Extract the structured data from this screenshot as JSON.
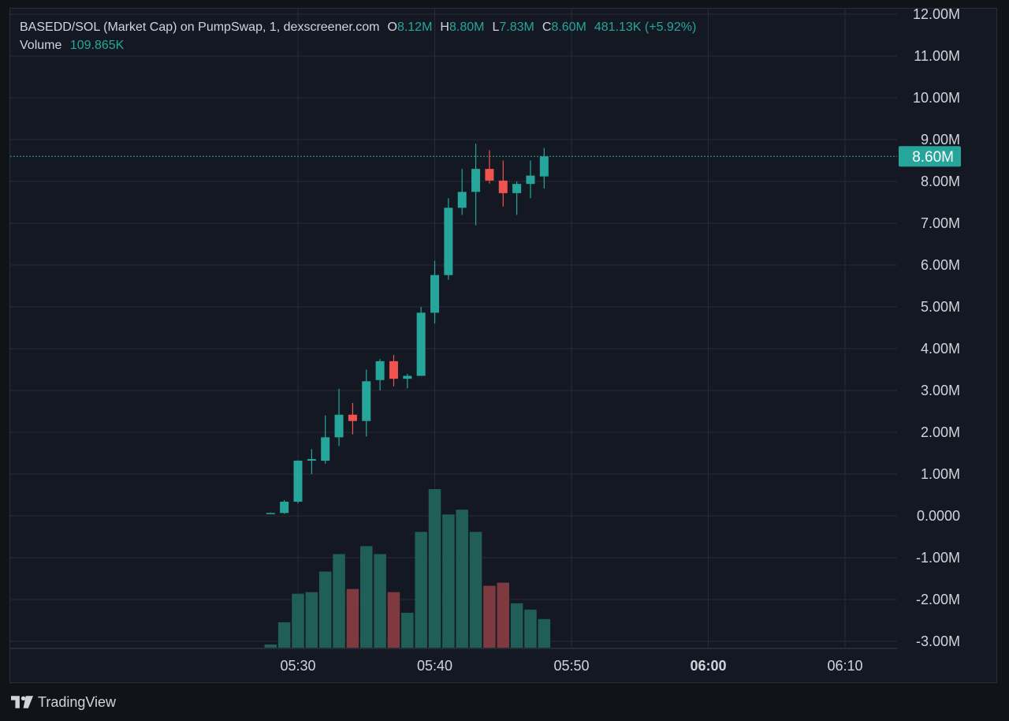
{
  "legend": {
    "symbol": "BASEDD/SOL (Market Cap) on PumpSwap, 1, dexscreener.com",
    "o_label": "O",
    "o_value": "8.12M",
    "h_label": "H",
    "h_value": "8.80M",
    "l_label": "L",
    "l_value": "7.83M",
    "c_label": "C",
    "c_value": "8.60M",
    "change": "481.13K (+5.92%)",
    "volume_label": "Volume",
    "volume_value": "109.865K"
  },
  "branding": {
    "name": "TradingView"
  },
  "colors": {
    "up": "#26a69a",
    "down": "#ef5350",
    "up_volume": "#1f5f57",
    "down_volume": "#7e3a3e",
    "price_line": "#26a69a",
    "background": "#141823",
    "grid": "#262b36",
    "text": "#d1d4dc"
  },
  "chart_data": {
    "type": "candlestick",
    "interval": "1m",
    "price_axis": {
      "ticks": [
        "12.00M",
        "11.00M",
        "10.00M",
        "9.00M",
        "8.00M",
        "7.00M",
        "6.00M",
        "5.00M",
        "4.00M",
        "3.00M",
        "2.00M",
        "1.00M",
        "0.0000",
        "-1.00M",
        "-2.00M",
        "-3.00M"
      ],
      "tick_values": [
        12,
        11,
        10,
        9,
        8,
        7,
        6,
        5,
        4,
        3,
        2,
        1,
        0,
        -1,
        -2,
        -3
      ],
      "unit": "M"
    },
    "current_price_label": "8.60M",
    "current_price": 8.6,
    "time_axis": {
      "labels": [
        "05:30",
        "05:40",
        "05:50",
        "06:00",
        "06:10"
      ],
      "label_minutes": [
        30,
        40,
        50,
        60,
        70
      ],
      "bold": [
        false,
        false,
        false,
        true,
        false
      ]
    },
    "candles": [
      {
        "t": 28,
        "o": 0.06,
        "h": 0.08,
        "l": 0.05,
        "c": 0.07
      },
      {
        "t": 29,
        "o": 0.07,
        "h": 0.38,
        "l": 0.05,
        "c": 0.34
      },
      {
        "t": 30,
        "o": 0.34,
        "h": 1.33,
        "l": 0.3,
        "c": 1.32
      },
      {
        "t": 31,
        "o": 1.32,
        "h": 1.6,
        "l": 1.0,
        "c": 1.36
      },
      {
        "t": 32,
        "o": 1.32,
        "h": 2.4,
        "l": 1.25,
        "c": 1.88
      },
      {
        "t": 33,
        "o": 1.88,
        "h": 3.04,
        "l": 1.67,
        "c": 2.42
      },
      {
        "t": 34,
        "o": 2.42,
        "h": 2.7,
        "l": 1.95,
        "c": 2.27
      },
      {
        "t": 35,
        "o": 2.27,
        "h": 3.5,
        "l": 1.9,
        "c": 3.22
      },
      {
        "t": 36,
        "o": 3.25,
        "h": 3.75,
        "l": 3.0,
        "c": 3.7
      },
      {
        "t": 37,
        "o": 3.7,
        "h": 3.85,
        "l": 3.1,
        "c": 3.28
      },
      {
        "t": 38,
        "o": 3.28,
        "h": 3.4,
        "l": 3.05,
        "c": 3.35
      },
      {
        "t": 39,
        "o": 3.35,
        "h": 5.0,
        "l": 3.35,
        "c": 4.86
      },
      {
        "t": 40,
        "o": 4.86,
        "h": 6.1,
        "l": 4.6,
        "c": 5.76
      },
      {
        "t": 41,
        "o": 5.76,
        "h": 7.6,
        "l": 5.65,
        "c": 7.37
      },
      {
        "t": 42,
        "o": 7.37,
        "h": 8.3,
        "l": 7.2,
        "c": 7.75
      },
      {
        "t": 43,
        "o": 7.75,
        "h": 8.9,
        "l": 6.95,
        "c": 8.3
      },
      {
        "t": 44,
        "o": 8.3,
        "h": 8.75,
        "l": 7.95,
        "c": 8.02
      },
      {
        "t": 45,
        "o": 8.02,
        "h": 8.5,
        "l": 7.4,
        "c": 7.72
      },
      {
        "t": 46,
        "o": 7.72,
        "h": 8.0,
        "l": 7.2,
        "c": 7.94
      },
      {
        "t": 47,
        "o": 7.94,
        "h": 8.5,
        "l": 7.6,
        "c": 8.14
      },
      {
        "t": 48,
        "o": 8.12,
        "h": 8.8,
        "l": 7.83,
        "c": 8.6
      }
    ],
    "volume_relative": [
      0.02,
      0.16,
      0.34,
      0.35,
      0.48,
      0.59,
      0.37,
      0.64,
      0.59,
      0.35,
      0.22,
      0.73,
      1.0,
      0.84,
      0.87,
      0.73,
      0.39,
      0.41,
      0.28,
      0.24,
      0.18
    ],
    "volume_direction": [
      "up",
      "up",
      "up",
      "up",
      "up",
      "up",
      "down",
      "up",
      "up",
      "down",
      "up",
      "up",
      "up",
      "up",
      "up",
      "up",
      "down",
      "down",
      "up",
      "up",
      "up"
    ]
  }
}
